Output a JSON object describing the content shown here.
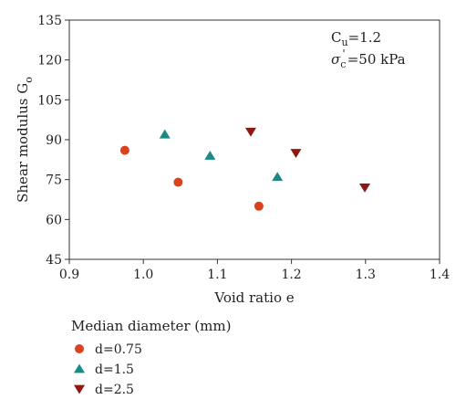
{
  "chart_data": {
    "type": "scatter",
    "xlabel": "Void ratio e",
    "ylabel_main": "Shear modulus G",
    "ylabel_sub": "o",
    "xlim": [
      0.9,
      1.4
    ],
    "ylim": [
      45,
      135
    ],
    "x_ticks": [
      0.9,
      1.0,
      1.1,
      1.2,
      1.3,
      1.4
    ],
    "x_tick_labels": [
      "0.9",
      "1.0",
      "1.1",
      "1.2",
      "1.3",
      "1.4"
    ],
    "y_ticks": [
      45,
      60,
      75,
      90,
      105,
      120,
      135
    ],
    "y_tick_labels": [
      "45",
      "60",
      "75",
      "90",
      "105",
      "120",
      "135"
    ],
    "grid": false,
    "legend_placement": "below",
    "legend_title": "Median diameter (mm)",
    "annotation": {
      "cu_main": "C",
      "cu_sub": "u",
      "cu_value": "=1.2",
      "sigma_main": "σ",
      "sigma_sub": "c",
      "sigma_prime": "'",
      "sigma_value": "=50 kPa"
    },
    "series": [
      {
        "name": "d=0.75",
        "marker": "circle",
        "color": "#d9421c",
        "points": [
          {
            "x": 0.975,
            "y": 86
          },
          {
            "x": 1.047,
            "y": 74
          },
          {
            "x": 1.156,
            "y": 65
          }
        ]
      },
      {
        "name": "d=1.5",
        "marker": "triangle-up",
        "color": "#1a8a87",
        "points": [
          {
            "x": 1.029,
            "y": 92
          },
          {
            "x": 1.09,
            "y": 84
          },
          {
            "x": 1.181,
            "y": 76
          }
        ]
      },
      {
        "name": "d=2.5",
        "marker": "triangle-down",
        "color": "#8b1a14",
        "points": [
          {
            "x": 1.145,
            "y": 93
          },
          {
            "x": 1.206,
            "y": 85
          },
          {
            "x": 1.299,
            "y": 72
          }
        ]
      }
    ]
  }
}
